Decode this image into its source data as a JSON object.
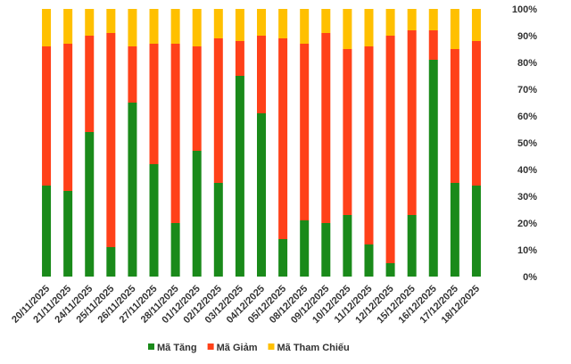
{
  "chart_data": {
    "type": "bar",
    "stacked": true,
    "percent": true,
    "categories": [
      "20/11/2025",
      "21/11/2025",
      "24/11/2025",
      "25/11/2025",
      "26/11/2025",
      "27/11/2025",
      "28/11/2025",
      "01/12/2025",
      "02/12/2025",
      "03/12/2025",
      "04/12/2025",
      "05/12/2025",
      "08/12/2025",
      "09/12/2025",
      "10/12/2025",
      "11/12/2025",
      "12/12/2025",
      "15/12/2025",
      "16/12/2025",
      "17/12/2025",
      "18/12/2025"
    ],
    "series": [
      {
        "name": "Mã Tăng",
        "color": "#1a8a1a",
        "values": [
          34,
          32,
          54,
          11,
          65,
          42,
          20,
          47,
          35,
          75,
          61,
          14,
          21,
          20,
          23,
          12,
          5,
          23,
          81,
          35,
          34
        ]
      },
      {
        "name": "Mã Giảm",
        "color": "#ff4119",
        "values": [
          52,
          55,
          36,
          80,
          21,
          45,
          67,
          39,
          54,
          13,
          29,
          75,
          66,
          71,
          62,
          74,
          85,
          69,
          11,
          50,
          54
        ]
      },
      {
        "name": "Mã Tham Chiếu",
        "color": "#ffc000",
        "values": [
          14,
          13,
          10,
          9,
          14,
          13,
          13,
          14,
          11,
          12,
          10,
          11,
          13,
          9,
          15,
          14,
          10,
          8,
          8,
          15,
          12
        ]
      }
    ],
    "yticks": [
      "0%",
      "10%",
      "20%",
      "30%",
      "40%",
      "50%",
      "60%",
      "70%",
      "80%",
      "90%",
      "100%"
    ],
    "ylim": [
      0,
      100
    ],
    "grid": false,
    "legend_position": "bottom"
  }
}
